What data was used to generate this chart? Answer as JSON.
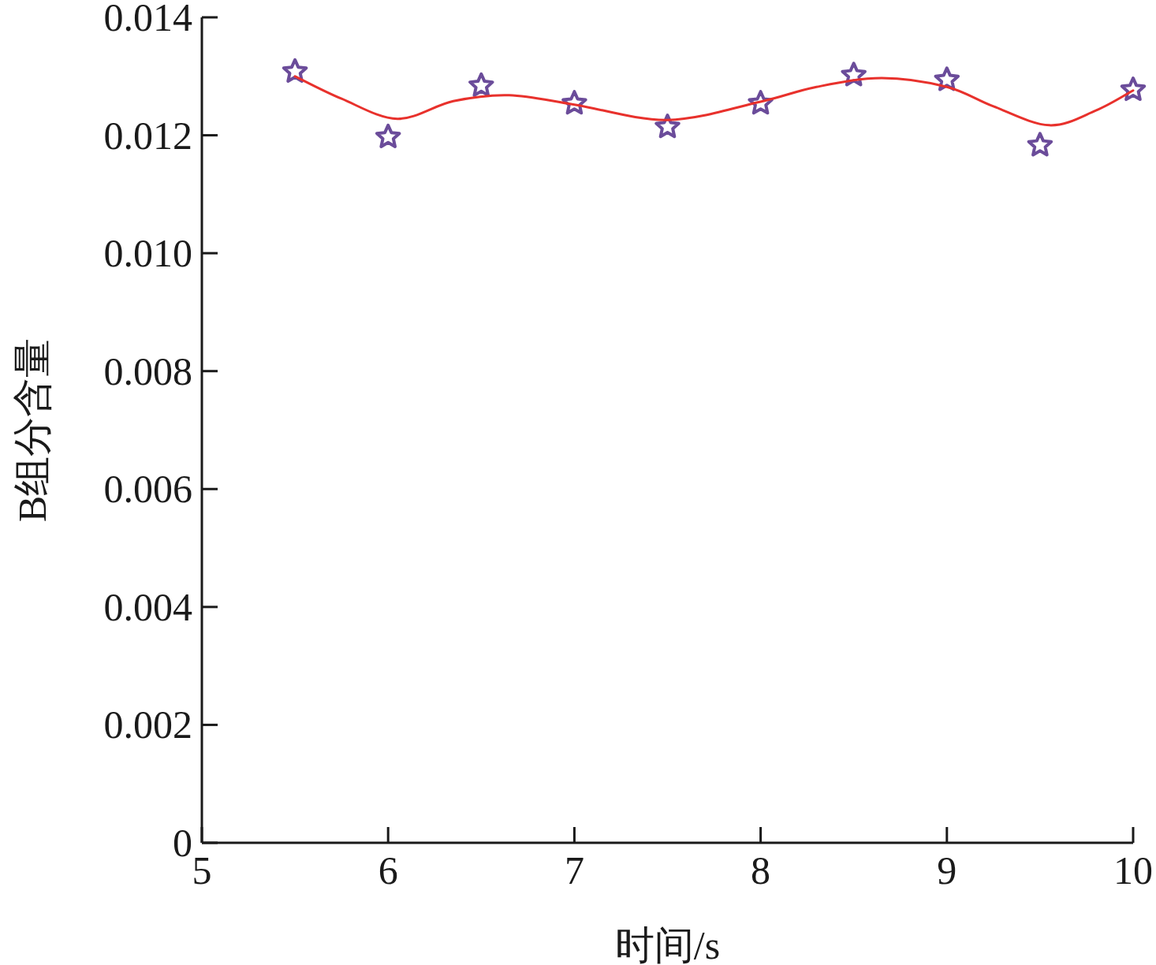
{
  "chart_data": {
    "type": "scatter",
    "xlabel": "时间/s",
    "ylabel": "B组分含量",
    "xlim": [
      5,
      10
    ],
    "xticks": [
      5,
      6,
      7,
      8,
      9,
      10
    ],
    "ylim": [
      0,
      0.014
    ],
    "yticks": [
      0,
      0.002,
      0.004,
      0.006,
      0.008,
      {
        "value": 0.01,
        "label": "0.010"
      },
      0.012,
      0.014
    ],
    "grid": false,
    "series": [
      {
        "type": "line",
        "color": "#e8312c",
        "marker": "none",
        "line_style": "solid",
        "x": [
          5.5,
          5.75,
          6.05,
          6.35,
          6.65,
          7,
          7.5,
          8,
          8.3,
          8.65,
          9,
          9.25,
          9.55,
          9.8,
          10
        ],
        "values": [
          0.013,
          0.01262,
          0.01228,
          0.01258,
          0.01268,
          0.01252,
          0.01226,
          0.01257,
          0.01282,
          0.01297,
          0.01282,
          0.01249,
          0.01217,
          0.01242,
          0.01276
        ]
      },
      {
        "color": "#6b4c9a",
        "marker": "star",
        "x": [
          5.5,
          6,
          6.5,
          7,
          7.5,
          8,
          8.5,
          9,
          9.5,
          10
        ],
        "values": [
          0.01308,
          0.01197,
          0.01284,
          0.01254,
          0.01214,
          0.01254,
          0.01302,
          0.01294,
          0.01183,
          0.01277
        ]
      }
    ]
  }
}
